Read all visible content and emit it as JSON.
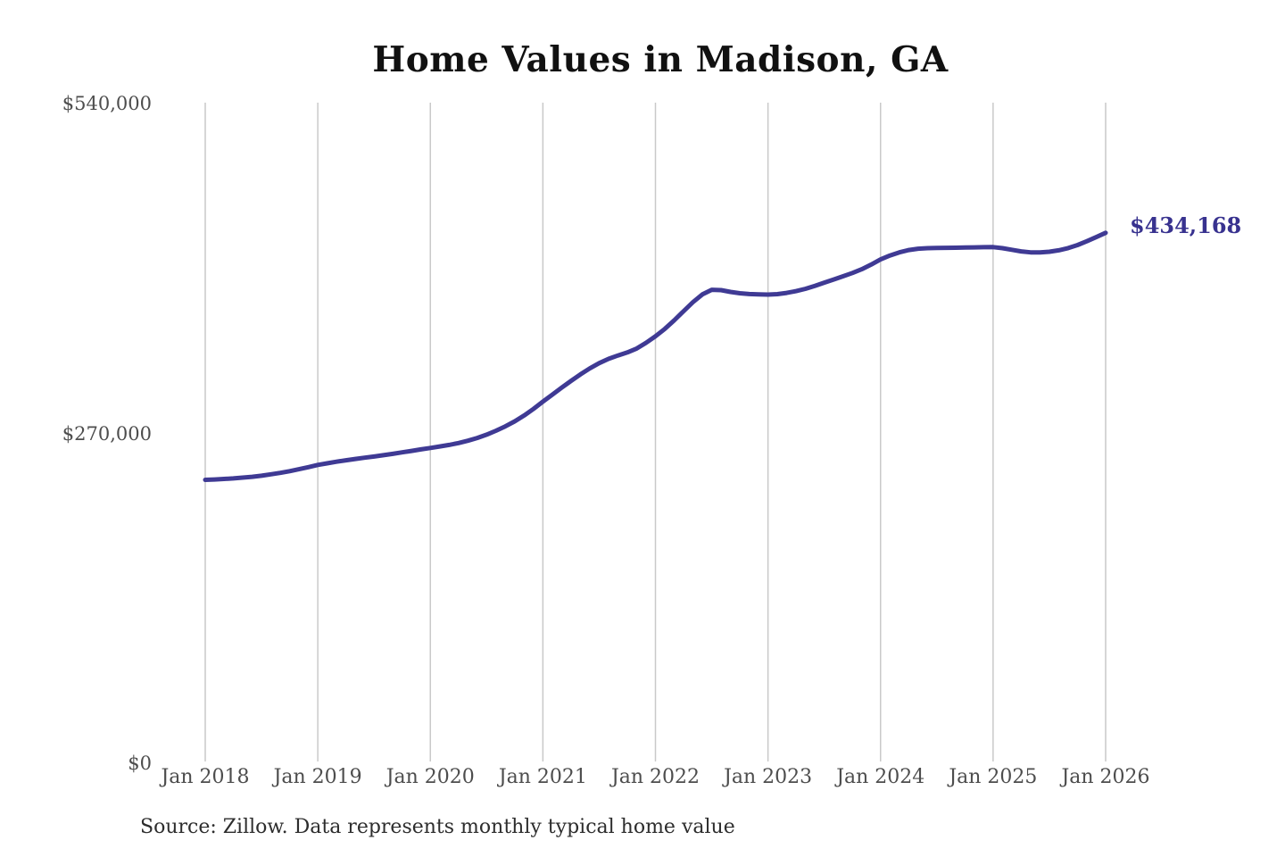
{
  "title": "Home Values in Madison, GA",
  "end_label": "$434,168",
  "source": "Source: Zillow. Data represents monthly typical home value",
  "colors": {
    "background": "#ffffff",
    "line": "#3f3a94",
    "end_label": "#38328f",
    "gridline": "#c9c9c9",
    "axis_text": "#4d4d4d",
    "title_text": "#111111",
    "source_text": "#2d2d2d"
  },
  "y_axis": {
    "max": 540000,
    "ticks": [
      {
        "label": "$540,000",
        "value": 540000
      },
      {
        "label": "$270,000",
        "value": 270000
      },
      {
        "label": "$0",
        "value": 0
      }
    ]
  },
  "x_axis": {
    "ticks": [
      "Jan 2018",
      "Jan 2019",
      "Jan 2020",
      "Jan 2021",
      "Jan 2022",
      "Jan 2023",
      "Jan 2024",
      "Jan 2025",
      "Jan 2026"
    ]
  },
  "chart_data": {
    "type": "line",
    "title": "Home Values in Madison, GA",
    "series_name": "Monthly typical home value",
    "x_start": "2018-01",
    "x_end": "2026-01",
    "frequency": "monthly",
    "ylim": [
      0,
      540000
    ],
    "grid": "vertical-only",
    "legend": "none",
    "final_value": 434168,
    "values": [
      232000,
      232300,
      232700,
      233200,
      233800,
      234500,
      235400,
      236500,
      237700,
      239100,
      240700,
      242400,
      244200,
      245500,
      246800,
      248000,
      249100,
      250100,
      251100,
      252200,
      253300,
      254500,
      255700,
      256900,
      258100,
      259300,
      260600,
      262100,
      264000,
      266300,
      269000,
      272200,
      275800,
      279900,
      284700,
      290100,
      296000,
      301700,
      307400,
      313000,
      318300,
      323200,
      327500,
      331000,
      333800,
      336300,
      339500,
      344200,
      349500,
      355600,
      362500,
      370000,
      377400,
      383800,
      387600,
      387300,
      385800,
      384700,
      384100,
      383800,
      383600,
      384000,
      385000,
      386500,
      388400,
      390800,
      393400,
      396000,
      398600,
      401300,
      404400,
      408200,
      412400,
      415600,
      418200,
      420100,
      421200,
      421600,
      421800,
      421900,
      422000,
      422100,
      422300,
      422400,
      422500,
      421600,
      420300,
      419000,
      418200,
      418100,
      418700,
      419900,
      421700,
      424200,
      427300,
      430700,
      434168
    ]
  }
}
